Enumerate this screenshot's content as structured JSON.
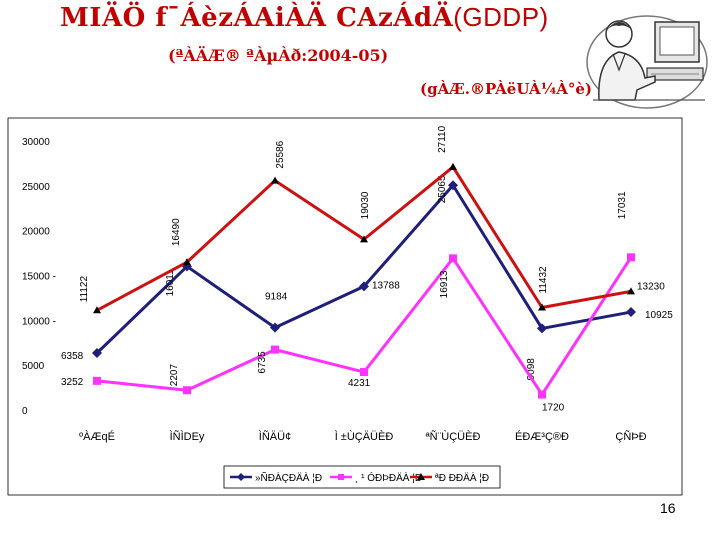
{
  "slide": {
    "title_main": "MIÄÖ f¯ÁèzÁAiÀÄ CAzÁdÄ",
    "title_abbr": "(GDDP)",
    "subtitle": "(ªÀÄÆ® ªÀµÀð:2004-05)",
    "unit": "(gÀÆ.®PÀëUÀ¼À°è)",
    "page_number": "16",
    "clipart_icon": "person-at-computer-icon"
  },
  "chart_data": {
    "type": "line",
    "categories": [
      "ºÀÆqÉ",
      "ÌÑÌDEy",
      "ÌÑÄÜ¢",
      "Ì ±ÙÇÄÜÈÐ",
      "ªÑ¨ÙÇÜÈÐ",
      "ÉÐÆ³Ç®Ð",
      "ÇÑÞÐ"
    ],
    "ylim": [
      0,
      30000
    ],
    "yticks": [
      0,
      5000,
      10000,
      15000,
      20000,
      25000,
      30000
    ],
    "ytick_labels": [
      "0",
      "5000",
      "10000 -",
      "15000 -",
      "20000",
      "25000",
      "30000"
    ],
    "grid": false,
    "legend_position": "bottom",
    "series": [
      {
        "name": "»ÑÐÀÇÐÄÀ ¦Ð",
        "color": "#1f1f7a",
        "marker": "diamond",
        "values": [
          6358,
          16011,
          9184,
          13788,
          25065,
          9098,
          10925
        ],
        "labels": [
          "6358",
          "16011",
          "9184",
          "13788",
          "25065",
          "9098",
          "10925"
        ]
      },
      {
        "name": "¸ ¹ ÓÐÞÐÄÀ ¦Ð",
        "color": "#ff33ff",
        "marker": "square",
        "values": [
          3252,
          2207,
          6735,
          4231,
          16913,
          1720,
          17031
        ],
        "labels": [
          "3252",
          "2207",
          "6735",
          "4231",
          "16913",
          "1720",
          "17031"
        ]
      },
      {
        "name": "ªÐ ÐÐÄÀ ¦Ð",
        "color": "#cc1111",
        "marker": "triangle",
        "values": [
          11122,
          16490,
          25586,
          19030,
          27110,
          11432,
          13230
        ],
        "labels": [
          "11122",
          "16490",
          "25586",
          "19030",
          "27110",
          "11432",
          "13230"
        ]
      }
    ]
  }
}
